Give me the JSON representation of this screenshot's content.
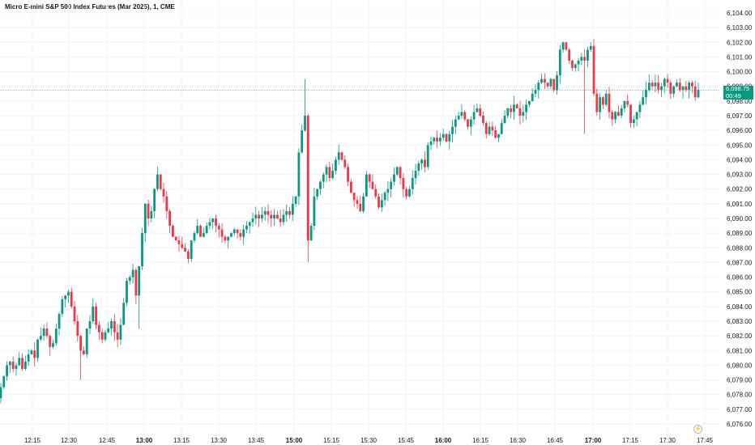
{
  "header": {
    "title": "Micro E-mini S&P 500 Index Futures (Mar 2025), 1, CME"
  },
  "price_badge": {
    "price": "6,098.75",
    "countdown": "00:49"
  },
  "colors": {
    "up": "#089981",
    "down": "#f23645",
    "grid": "#f0f3fa",
    "current_line": "#089981"
  },
  "icons": {
    "scale": "lightning-icon"
  },
  "chart_data": {
    "type": "candlestick",
    "title": "Micro E-mini S&P 500 Index Futures (Mar 2025), 1, CME",
    "ylim": [
      6075.5,
      6104.5
    ],
    "current_price": 6098.75,
    "y_ticks": [
      "6,076.00",
      "6,077.00",
      "6,078.00",
      "6,079.00",
      "6,080.00",
      "6,081.00",
      "6,082.00",
      "6,083.00",
      "6,084.00",
      "6,085.00",
      "6,086.00",
      "6,087.00",
      "6,088.00",
      "6,089.00",
      "6,090.00",
      "6,091.00",
      "6,092.00",
      "6,093.00",
      "6,094.00",
      "6,095.00",
      "6,096.00",
      "6,097.00",
      "6,098.00",
      "6,099.00",
      "6,100.00",
      "6,101.00",
      "6,102.00",
      "6,103.00",
      "6,104.00"
    ],
    "x_ticks": [
      {
        "label": "12:15",
        "bold": false
      },
      {
        "label": "12:30",
        "bold": false
      },
      {
        "label": "12:45",
        "bold": false
      },
      {
        "label": "13:00",
        "bold": true
      },
      {
        "label": "13:15",
        "bold": false
      },
      {
        "label": "13:30",
        "bold": false
      },
      {
        "label": "13:45",
        "bold": false
      },
      {
        "label": "15:00",
        "bold": true
      },
      {
        "label": "15:15",
        "bold": false
      },
      {
        "label": "15:30",
        "bold": false
      },
      {
        "label": "15:45",
        "bold": false
      },
      {
        "label": "16:00",
        "bold": true
      },
      {
        "label": "16:15",
        "bold": false
      },
      {
        "label": "16:30",
        "bold": false
      },
      {
        "label": "16:45",
        "bold": false
      },
      {
        "label": "17:00",
        "bold": true
      },
      {
        "label": "17:15",
        "bold": false
      },
      {
        "label": "17:30",
        "bold": false
      },
      {
        "label": "17:45",
        "bold": false
      }
    ],
    "close": [
      6078.5,
      6079.25,
      6080.0,
      6080.25,
      6079.75,
      6080.0,
      6080.5,
      6079.75,
      6080.25,
      6080.75,
      6081.0,
      6080.5,
      6081.75,
      6082.0,
      6082.5,
      6082.0,
      6081.25,
      6081.5,
      6082.5,
      6083.5,
      6084.5,
      6084.75,
      6085.0,
      6084.0,
      6083.0,
      6082.0,
      6081.0,
      6080.75,
      6082.5,
      6083.0,
      6084.0,
      6082.75,
      6082.25,
      6081.75,
      6082.25,
      6082.5,
      6083.0,
      6082.25,
      6081.75,
      6082.75,
      6084.25,
      6085.75,
      6086.0,
      6086.5,
      6084.75,
      6086.75,
      6089.0,
      6091.0,
      6090.0,
      6090.5,
      6092.0,
      6093.0,
      6092.0,
      6091.5,
      6090.5,
      6089.5,
      6088.75,
      6088.5,
      6088.25,
      6088.0,
      6087.75,
      6087.25,
      6088.5,
      6089.0,
      6089.5,
      6088.75,
      6089.0,
      6089.5,
      6089.75,
      6090.0,
      6089.5,
      6089.25,
      6088.75,
      6088.5,
      6088.75,
      6089.0,
      6089.25,
      6089.0,
      6088.75,
      6089.25,
      6089.5,
      6089.75,
      6090.0,
      6090.25,
      6090.0,
      6090.25,
      6090.5,
      6090.25,
      6090.0,
      6090.25,
      6090.0,
      6089.75,
      6090.25,
      6090.5,
      6090.25,
      6091.0,
      6091.5,
      6094.5,
      6096.0,
      6097.0,
      6088.5,
      6089.5,
      6091.5,
      6092.0,
      6092.5,
      6093.0,
      6093.5,
      6092.75,
      6093.25,
      6094.0,
      6094.5,
      6094.0,
      6093.5,
      6092.5,
      6091.75,
      6091.25,
      6091.0,
      6090.5,
      6091.5,
      6093.0,
      6092.5,
      6092.0,
      6091.5,
      6090.75,
      6091.25,
      6091.75,
      6092.0,
      6092.5,
      6093.0,
      6093.5,
      6092.75,
      6092.0,
      6091.5,
      6092.0,
      6092.75,
      6093.25,
      6093.75,
      6094.0,
      6093.5,
      6095.0,
      6095.25,
      6095.5,
      6095.25,
      6095.5,
      6095.75,
      6095.25,
      6095.75,
      6096.25,
      6096.75,
      6097.0,
      6097.25,
      6096.75,
      6096.25,
      6096.75,
      6097.25,
      6097.5,
      6097.0,
      6096.5,
      6095.75,
      6096.25,
      6096.0,
      6095.5,
      6095.75,
      6096.5,
      6097.0,
      6097.5,
      6097.25,
      6097.75,
      6097.5,
      6097.0,
      6097.25,
      6097.75,
      6098.0,
      6098.5,
      6098.75,
      6099.25,
      6099.5,
      6099.25,
      6099.0,
      6099.5,
      6098.75,
      6099.75,
      6101.5,
      6102.0,
      6101.5,
      6100.75,
      6100.25,
      6100.5,
      6100.75,
      6101.0,
      6100.75,
      6101.5,
      6101.75,
      6098.5,
      6097.25,
      6098.25,
      6097.75,
      6098.5,
      6097.25,
      6096.75,
      6097.25,
      6097.0,
      6097.5,
      6098.0,
      6097.75,
      6096.5,
      6096.75,
      6097.25,
      6097.75,
      6098.25,
      6098.75,
      6099.25,
      6099.0,
      6099.25,
      6098.75,
      6099.0,
      6099.5,
      6099.25,
      6098.5,
      6099.0,
      6099.25,
      6098.75,
      6099.0,
      6098.75,
      6099.25,
      6099.0,
      6098.25,
      6098.75
    ]
  }
}
